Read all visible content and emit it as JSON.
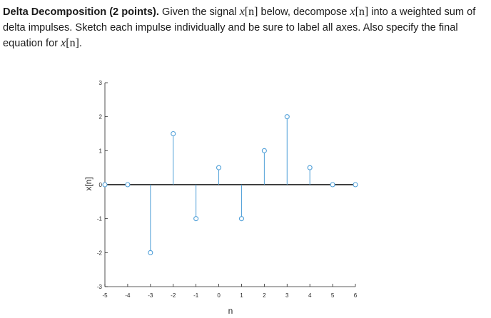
{
  "problem": {
    "title": "Delta Decomposition (2 points).",
    "text_1": " Given the signal ",
    "sig_1": "x",
    "arg_1": "[n]",
    "text_2": " below, decompose ",
    "sig_2": "x",
    "arg_2": "[n]",
    "text_3": " into a weighted sum of delta impulses. Sketch each impulse individually and be sure to label all axes. Also specify the final equation for ",
    "sig_3": "x",
    "arg_3": "[n]",
    "text_4": "."
  },
  "chart_data": {
    "type": "stem",
    "x": [
      -5,
      -4,
      -3,
      -2,
      -1,
      0,
      1,
      2,
      3,
      4,
      5,
      6
    ],
    "y": [
      0,
      0,
      -2,
      1.5,
      -1,
      0.5,
      -1,
      1,
      2,
      0.5,
      0,
      0
    ],
    "xlabel": "n",
    "ylabel": "x[n]",
    "xlim": [
      -5,
      6
    ],
    "ylim": [
      -3,
      3
    ],
    "xticks": [
      -5,
      -4,
      -3,
      -2,
      -1,
      0,
      1,
      2,
      3,
      4,
      5,
      6
    ],
    "yticks": [
      -3,
      -2,
      -1,
      0,
      1,
      2,
      3
    ],
    "baseline": 0,
    "grid": false,
    "stem_color": "#4f9fd8",
    "baseline_color": "#000000",
    "axis_color": "#262626"
  }
}
